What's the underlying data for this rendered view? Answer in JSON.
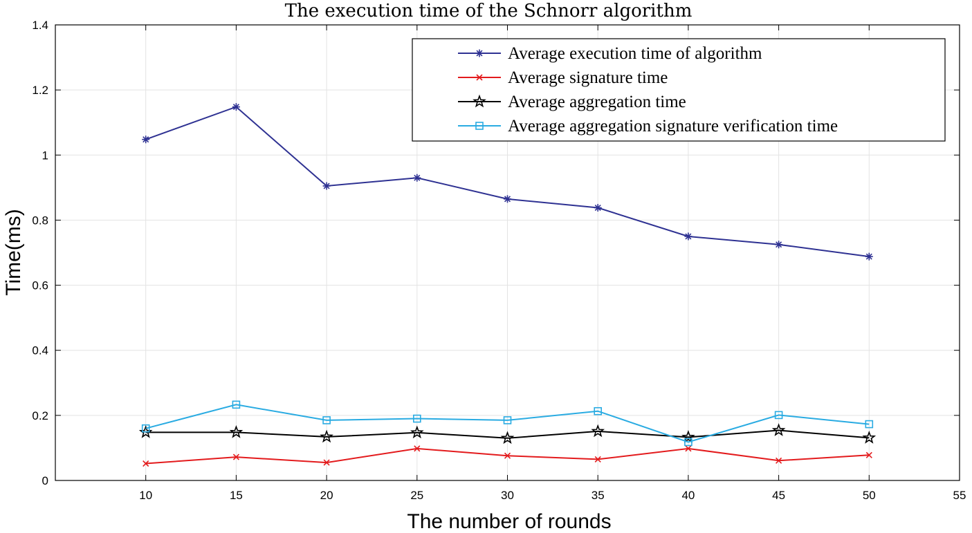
{
  "chart_data": {
    "type": "line",
    "title": "The execution time of the Schnorr algorithm",
    "xlabel": "The number of rounds",
    "ylabel": "Time(ms)",
    "xlim": [
      5,
      55
    ],
    "ylim": [
      0,
      1.4
    ],
    "xticks": [
      10,
      15,
      20,
      25,
      30,
      35,
      40,
      45,
      50,
      55
    ],
    "xtick_labels": [
      "10",
      "15",
      "20",
      "25",
      "30",
      "35",
      "40",
      "45",
      "50",
      "55"
    ],
    "yticks": [
      0,
      0.2,
      0.4,
      0.6,
      0.8,
      1,
      1.2,
      1.4
    ],
    "ytick_labels": [
      "0",
      "0.2",
      "0.4",
      "0.6",
      "0.8",
      "1",
      "1.2",
      "1.4"
    ],
    "grid": true,
    "legend_position": "top-right",
    "x": [
      10,
      15,
      20,
      25,
      30,
      35,
      40,
      45,
      50
    ],
    "series": [
      {
        "name": "Average execution time of algorithm",
        "color": "#2e3192",
        "marker": "asterisk",
        "values": [
          1.048,
          1.148,
          0.905,
          0.93,
          0.865,
          0.838,
          0.75,
          0.725,
          0.688
        ]
      },
      {
        "name": "Average signature time",
        "color": "#e31a1c",
        "marker": "x",
        "values": [
          0.052,
          0.072,
          0.055,
          0.098,
          0.076,
          0.065,
          0.098,
          0.061,
          0.078
        ]
      },
      {
        "name": "Average aggregation time",
        "color": "#000000",
        "marker": "star",
        "values": [
          0.148,
          0.148,
          0.134,
          0.147,
          0.13,
          0.151,
          0.133,
          0.154,
          0.131
        ]
      },
      {
        "name": "Average aggregation signature verification time",
        "color": "#29abe2",
        "marker": "square",
        "values": [
          0.16,
          0.233,
          0.185,
          0.19,
          0.185,
          0.213,
          0.118,
          0.201,
          0.173
        ]
      }
    ]
  }
}
